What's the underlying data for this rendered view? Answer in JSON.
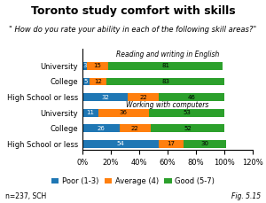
{
  "chart_data": {
    "type": "bar",
    "orientation": "horizontal",
    "stacked": true,
    "data_labels": true,
    "title": "Toronto study comfort with skills",
    "subtitle": "\" How do you rate your ability in each of the following skill areas?\"",
    "annotations": [
      "Reading and writing in English",
      "Working with computers",
      "n=237, SCH",
      "Fig. 5.15"
    ],
    "categories": [
      "University",
      "College",
      "High School or less",
      "University",
      "College",
      "High School or less"
    ],
    "series": [
      {
        "name": "Poor (1-3)",
        "values": [
          3,
          5,
          32,
          11,
          26,
          54
        ]
      },
      {
        "name": "Average (4)",
        "values": [
          15,
          12,
          22,
          36,
          22,
          17
        ]
      },
      {
        "name": "Good (5-7)",
        "values": [
          81,
          83,
          46,
          53,
          52,
          30
        ]
      }
    ],
    "xlim": [
      0,
      120
    ],
    "xticks": [
      {
        "value": 0,
        "label": "0%"
      },
      {
        "value": 20,
        "label": "20%"
      },
      {
        "value": 40,
        "label": "40%"
      },
      {
        "value": 60,
        "label": "60%"
      },
      {
        "value": 80,
        "label": "80%"
      },
      {
        "value": 100,
        "label": "100%"
      },
      {
        "value": 120,
        "label": "120%"
      }
    ],
    "grid": false,
    "legend": "lower center"
  }
}
